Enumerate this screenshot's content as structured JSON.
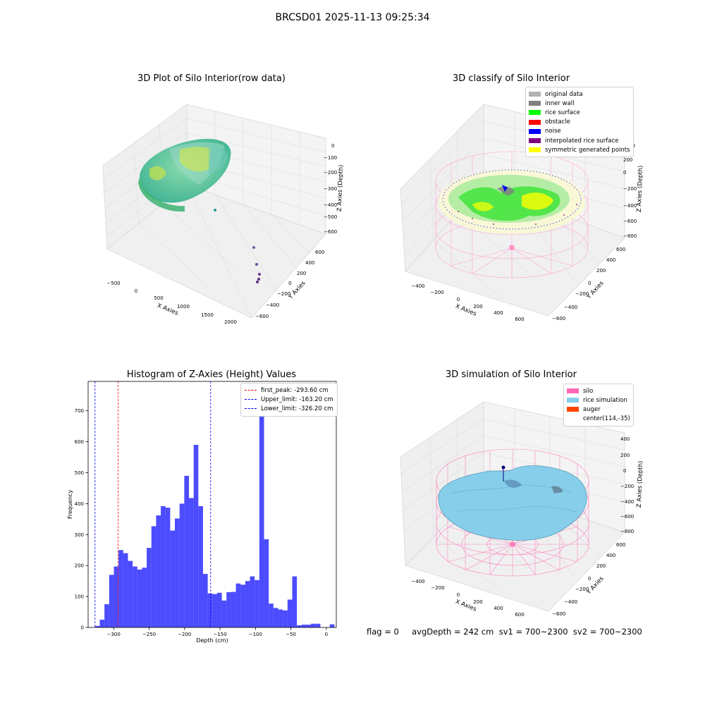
{
  "figure": {
    "title": "BRCSD01 2025-11-13 09:25:34"
  },
  "status_line": {
    "text": "flag = 0     avgDepth = 242 cm  sv1 = 700~2300  sv2 = 700~2300"
  },
  "panels": {
    "raw": {
      "title": "3D Plot of Silo Interior(row data)",
      "xlabel": "X Axies",
      "ylabel": "Y Axies",
      "zlabel": "Z Axies (Depth)",
      "xticks": [
        "−500",
        "0",
        "500",
        "1000",
        "1500",
        "2000"
      ],
      "yticks": [
        "−600",
        "−400",
        "−200",
        "0",
        "200",
        "400",
        "600"
      ],
      "zticks": [
        "0",
        "−100",
        "−200",
        "−300",
        "−400",
        "−500",
        "−600"
      ]
    },
    "classify": {
      "title": "3D classify of Silo Interior",
      "xlabel": "X Axies",
      "ylabel": "Y Axies",
      "zlabel": "Z Axies (Depth)",
      "xticks": [
        "−400",
        "−200",
        "0",
        "200",
        "400",
        "600"
      ],
      "yticks": [
        "−600",
        "−400",
        "−200",
        "0",
        "200",
        "400",
        "600"
      ],
      "zticks": [
        "200",
        "0",
        "−200",
        "−400",
        "−600",
        "−800"
      ],
      "zticks_partial": "00",
      "legend": [
        {
          "label": "original data",
          "color": "#b3b3b3"
        },
        {
          "label": "inner wall",
          "color": "#808080"
        },
        {
          "label": "rice surface",
          "color": "#00ff00"
        },
        {
          "label": "obstacle",
          "color": "#ff0000"
        },
        {
          "label": "noise",
          "color": "#0000ff"
        },
        {
          "label": "interpolated rice surface",
          "color": "#800080"
        },
        {
          "label": "symmetric generated points",
          "color": "#ffff00"
        }
      ]
    },
    "simulation": {
      "title": "3D simulation of Silo Interior",
      "xlabel": "X Axies",
      "ylabel": "Y Axies",
      "zlabel": "Z Axies (Depth)",
      "xticks": [
        "−400",
        "−200",
        "0",
        "200",
        "400",
        "600"
      ],
      "yticks": [
        "−600",
        "−400",
        "−200",
        "0",
        "200",
        "400",
        "600"
      ],
      "zticks": [
        "400",
        "200",
        "0",
        "−200",
        "−400",
        "−600",
        "−800"
      ],
      "legend": [
        {
          "label": "silo",
          "color": "#ff69b4"
        },
        {
          "label": "rice simulation",
          "color": "#87ceeb"
        },
        {
          "label": "auger",
          "color": "#ff4500"
        },
        {
          "label": "center(114,-35)",
          "color": "#ffffff"
        }
      ]
    }
  },
  "chart_data": {
    "type": "bar",
    "title": "Histogram of Z-Axies (Height) Values",
    "xlabel": "Depth (cm)",
    "ylabel": "Frequency",
    "xlim": [
      -336,
      14
    ],
    "ylim": [
      0,
      795
    ],
    "xticks": [
      -300,
      -250,
      -200,
      -150,
      -100,
      -50,
      0
    ],
    "yticks": [
      0,
      100,
      200,
      300,
      400,
      500,
      600,
      700
    ],
    "bar_color": "#0000ff",
    "bins_start": -326.2,
    "bin_width": 6.62,
    "values": [
      5,
      25,
      75,
      170,
      197,
      250,
      240,
      215,
      197,
      187,
      193,
      257,
      327,
      362,
      392,
      387,
      313,
      352,
      400,
      490,
      418,
      590,
      392,
      173,
      110,
      108,
      112,
      87,
      114,
      115,
      142,
      138,
      150,
      165,
      153,
      755,
      285,
      77,
      63,
      58,
      55,
      90,
      165,
      7,
      9,
      9,
      12,
      12,
      0,
      0,
      10
    ],
    "vlines": [
      {
        "label": "first_peak: -293.60 cm",
        "x": -293.6,
        "color": "#ff0000"
      },
      {
        "label": "Upper_limit: -163.20 cm",
        "x": -163.2,
        "color": "#0000ff"
      },
      {
        "label": "Lower_limit: -326.20 cm",
        "x": -326.2,
        "color": "#0000ff"
      }
    ],
    "legend_position": "top-right"
  }
}
